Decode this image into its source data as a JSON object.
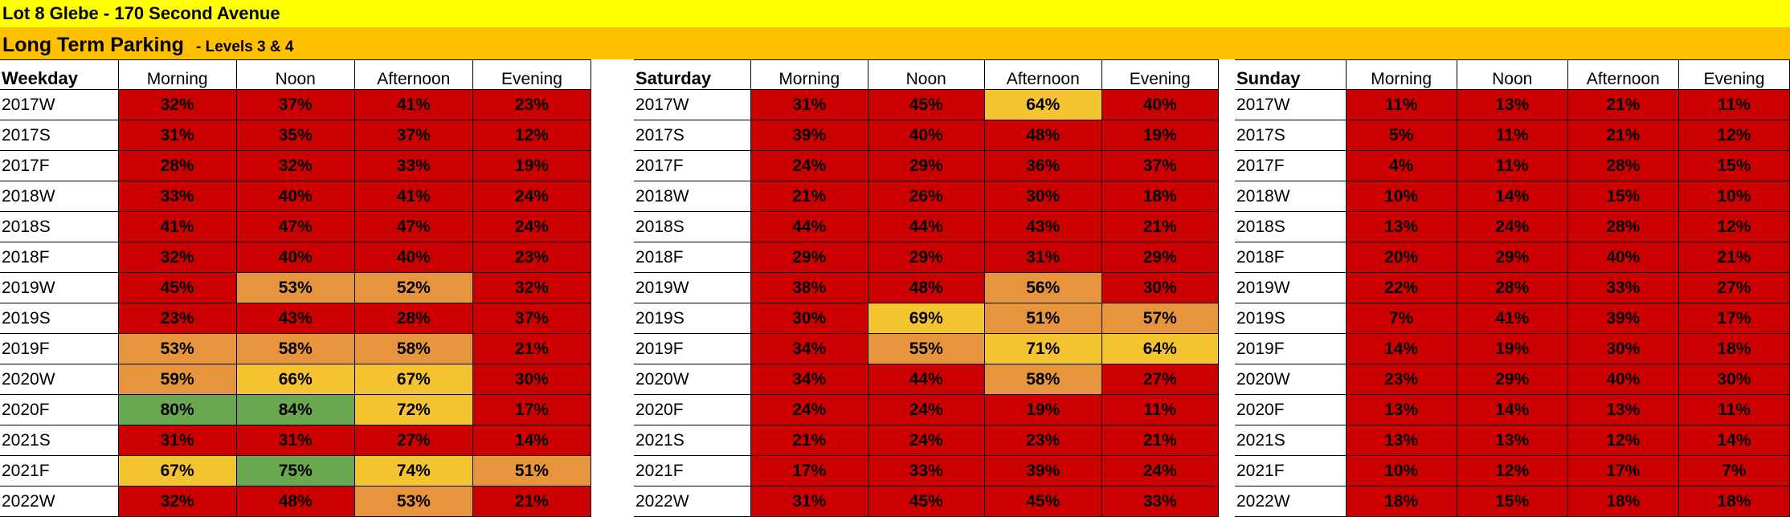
{
  "sheet": {
    "title": "Lot 8 Glebe - 170 Second Avenue",
    "section_title": "Long Term Parking",
    "section_subtitle": "- Levels 3 & 4"
  },
  "columns": [
    "Morning",
    "Noon",
    "Afternoon",
    "Evening"
  ],
  "colors": {
    "red": "#cc0000",
    "orange": "#e6953c",
    "yellow": "#f4c430",
    "green": "#6aa84f",
    "title_bg": "#ffff00",
    "section_bg": "#ffc000"
  },
  "panels": [
    {
      "label": "Weekday",
      "rows": [
        {
          "period": "2017W",
          "values": [
            "32%",
            "37%",
            "41%",
            "23%"
          ],
          "colors": [
            "red",
            "red",
            "red",
            "red"
          ]
        },
        {
          "period": "2017S",
          "values": [
            "31%",
            "35%",
            "37%",
            "12%"
          ],
          "colors": [
            "red",
            "red",
            "red",
            "red"
          ]
        },
        {
          "period": "2017F",
          "values": [
            "28%",
            "32%",
            "33%",
            "19%"
          ],
          "colors": [
            "red",
            "red",
            "red",
            "red"
          ]
        },
        {
          "period": "2018W",
          "values": [
            "33%",
            "40%",
            "41%",
            "24%"
          ],
          "colors": [
            "red",
            "red",
            "red",
            "red"
          ]
        },
        {
          "period": "2018S",
          "values": [
            "41%",
            "47%",
            "47%",
            "24%"
          ],
          "colors": [
            "red",
            "red",
            "red",
            "red"
          ]
        },
        {
          "period": "2018F",
          "values": [
            "32%",
            "40%",
            "40%",
            "23%"
          ],
          "colors": [
            "red",
            "red",
            "red",
            "red"
          ]
        },
        {
          "period": "2019W",
          "values": [
            "45%",
            "53%",
            "52%",
            "32%"
          ],
          "colors": [
            "red",
            "orange",
            "orange",
            "red"
          ]
        },
        {
          "period": "2019S",
          "values": [
            "23%",
            "43%",
            "28%",
            "37%"
          ],
          "colors": [
            "red",
            "red",
            "red",
            "red"
          ]
        },
        {
          "period": "2019F",
          "values": [
            "53%",
            "58%",
            "58%",
            "21%"
          ],
          "colors": [
            "orange",
            "orange",
            "orange",
            "red"
          ]
        },
        {
          "period": "2020W",
          "values": [
            "59%",
            "66%",
            "67%",
            "30%"
          ],
          "colors": [
            "orange",
            "yellow",
            "yellow",
            "red"
          ]
        },
        {
          "period": "2020F",
          "values": [
            "80%",
            "84%",
            "72%",
            "17%"
          ],
          "colors": [
            "green",
            "green",
            "yellow",
            "red"
          ]
        },
        {
          "period": "2021S",
          "values": [
            "31%",
            "31%",
            "27%",
            "14%"
          ],
          "colors": [
            "red",
            "red",
            "red",
            "red"
          ]
        },
        {
          "period": "2021F",
          "values": [
            "67%",
            "75%",
            "74%",
            "51%"
          ],
          "colors": [
            "yellow",
            "green",
            "yellow",
            "orange"
          ]
        },
        {
          "period": "2022W",
          "values": [
            "32%",
            "48%",
            "53%",
            "21%"
          ],
          "colors": [
            "red",
            "red",
            "orange",
            "red"
          ]
        }
      ]
    },
    {
      "label": "Saturday",
      "rows": [
        {
          "period": "2017W",
          "values": [
            "31%",
            "45%",
            "64%",
            "40%"
          ],
          "colors": [
            "red",
            "red",
            "yellow",
            "red"
          ]
        },
        {
          "period": "2017S",
          "values": [
            "39%",
            "40%",
            "48%",
            "19%"
          ],
          "colors": [
            "red",
            "red",
            "red",
            "red"
          ]
        },
        {
          "period": "2017F",
          "values": [
            "24%",
            "29%",
            "36%",
            "37%"
          ],
          "colors": [
            "red",
            "red",
            "red",
            "red"
          ]
        },
        {
          "period": "2018W",
          "values": [
            "21%",
            "26%",
            "30%",
            "18%"
          ],
          "colors": [
            "red",
            "red",
            "red",
            "red"
          ]
        },
        {
          "period": "2018S",
          "values": [
            "44%",
            "44%",
            "43%",
            "21%"
          ],
          "colors": [
            "red",
            "red",
            "red",
            "red"
          ]
        },
        {
          "period": "2018F",
          "values": [
            "29%",
            "29%",
            "31%",
            "29%"
          ],
          "colors": [
            "red",
            "red",
            "red",
            "red"
          ]
        },
        {
          "period": "2019W",
          "values": [
            "38%",
            "48%",
            "56%",
            "30%"
          ],
          "colors": [
            "red",
            "red",
            "orange",
            "red"
          ]
        },
        {
          "period": "2019S",
          "values": [
            "30%",
            "69%",
            "51%",
            "57%"
          ],
          "colors": [
            "red",
            "yellow",
            "orange",
            "orange"
          ]
        },
        {
          "period": "2019F",
          "values": [
            "34%",
            "55%",
            "71%",
            "64%"
          ],
          "colors": [
            "red",
            "orange",
            "yellow",
            "yellow"
          ]
        },
        {
          "period": "2020W",
          "values": [
            "34%",
            "44%",
            "58%",
            "27%"
          ],
          "colors": [
            "red",
            "red",
            "orange",
            "red"
          ]
        },
        {
          "period": "2020F",
          "values": [
            "24%",
            "24%",
            "19%",
            "11%"
          ],
          "colors": [
            "red",
            "red",
            "red",
            "red"
          ]
        },
        {
          "period": "2021S",
          "values": [
            "21%",
            "24%",
            "23%",
            "21%"
          ],
          "colors": [
            "red",
            "red",
            "red",
            "red"
          ]
        },
        {
          "period": "2021F",
          "values": [
            "17%",
            "33%",
            "39%",
            "24%"
          ],
          "colors": [
            "red",
            "red",
            "red",
            "red"
          ]
        },
        {
          "period": "2022W",
          "values": [
            "31%",
            "45%",
            "45%",
            "33%"
          ],
          "colors": [
            "red",
            "red",
            "red",
            "red"
          ]
        }
      ]
    },
    {
      "label": "Sunday",
      "rows": [
        {
          "period": "2017W",
          "values": [
            "11%",
            "13%",
            "21%",
            "11%"
          ],
          "colors": [
            "red",
            "red",
            "red",
            "red"
          ]
        },
        {
          "period": "2017S",
          "values": [
            "5%",
            "11%",
            "21%",
            "12%"
          ],
          "colors": [
            "red",
            "red",
            "red",
            "red"
          ]
        },
        {
          "period": "2017F",
          "values": [
            "4%",
            "11%",
            "28%",
            "15%"
          ],
          "colors": [
            "red",
            "red",
            "red",
            "red"
          ]
        },
        {
          "period": "2018W",
          "values": [
            "10%",
            "14%",
            "15%",
            "10%"
          ],
          "colors": [
            "red",
            "red",
            "red",
            "red"
          ]
        },
        {
          "period": "2018S",
          "values": [
            "13%",
            "24%",
            "28%",
            "12%"
          ],
          "colors": [
            "red",
            "red",
            "red",
            "red"
          ]
        },
        {
          "period": "2018F",
          "values": [
            "20%",
            "29%",
            "40%",
            "21%"
          ],
          "colors": [
            "red",
            "red",
            "red",
            "red"
          ]
        },
        {
          "period": "2019W",
          "values": [
            "22%",
            "28%",
            "33%",
            "27%"
          ],
          "colors": [
            "red",
            "red",
            "red",
            "red"
          ]
        },
        {
          "period": "2019S",
          "values": [
            "7%",
            "41%",
            "39%",
            "17%"
          ],
          "colors": [
            "red",
            "red",
            "red",
            "red"
          ]
        },
        {
          "period": "2019F",
          "values": [
            "14%",
            "19%",
            "30%",
            "18%"
          ],
          "colors": [
            "red",
            "red",
            "red",
            "red"
          ]
        },
        {
          "period": "2020W",
          "values": [
            "23%",
            "29%",
            "40%",
            "30%"
          ],
          "colors": [
            "red",
            "red",
            "red",
            "red"
          ]
        },
        {
          "period": "2020F",
          "values": [
            "13%",
            "14%",
            "13%",
            "11%"
          ],
          "colors": [
            "red",
            "red",
            "red",
            "red"
          ]
        },
        {
          "period": "2021S",
          "values": [
            "13%",
            "13%",
            "12%",
            "14%"
          ],
          "colors": [
            "red",
            "red",
            "red",
            "red"
          ]
        },
        {
          "period": "2021F",
          "values": [
            "10%",
            "12%",
            "17%",
            "7%"
          ],
          "colors": [
            "red",
            "red",
            "red",
            "red"
          ]
        },
        {
          "period": "2022W",
          "values": [
            "18%",
            "15%",
            "18%",
            "18%"
          ],
          "colors": [
            "red",
            "red",
            "red",
            "red"
          ]
        }
      ]
    }
  ]
}
